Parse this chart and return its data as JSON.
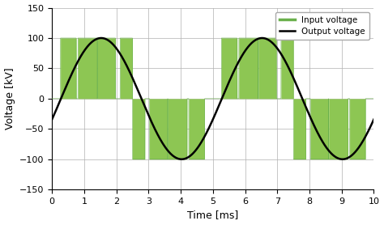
{
  "xlabel": "Time [ms]",
  "ylabel": "Voltage [kV]",
  "xlim": [
    0,
    10
  ],
  "ylim": [
    -150,
    150
  ],
  "xticks": [
    0,
    1,
    2,
    3,
    4,
    5,
    6,
    7,
    8,
    9,
    10
  ],
  "yticks": [
    -150,
    -100,
    -50,
    0,
    50,
    100,
    150
  ],
  "output_color": "#000000",
  "input_color": "#6ab04c",
  "input_fill_color": "#8dc653",
  "output_amplitude": 100,
  "output_frequency_hz": 200,
  "output_phase_deg": -20,
  "pwm_amplitude": 100,
  "pwm_carrier_freq": 1600,
  "signal_frequency": 200,
  "background_color": "#ffffff",
  "grid_color": "#b0b0b0",
  "legend_input": "Input voltage",
  "legend_output": "Output voltage",
  "fig_width": 4.74,
  "fig_height": 2.78,
  "dpi": 100
}
